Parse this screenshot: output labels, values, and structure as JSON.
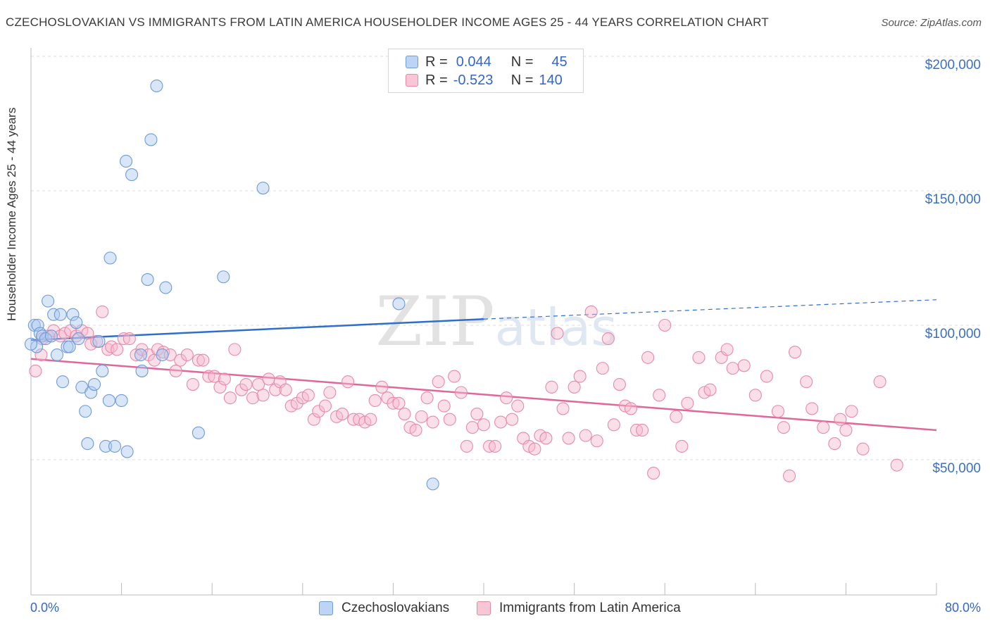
{
  "title": "CZECHOSLOVAKIAN VS IMMIGRANTS FROM LATIN AMERICA HOUSEHOLDER INCOME AGES 25 - 44 YEARS CORRELATION CHART",
  "source": "Source: ZipAtlas.com",
  "watermark": "ZIPatlas",
  "legend": {
    "rows": [
      {
        "r_label": "R =",
        "r_value": "0.044",
        "n_label": "N =",
        "n_value": "45"
      },
      {
        "r_label": "R =",
        "r_value": "-0.523",
        "n_label": "N =",
        "n_value": "140"
      }
    ]
  },
  "bottom_legend": [
    "Czechoslovakians",
    "Immigrants from Latin America"
  ],
  "colors": {
    "blue_fill": "#a9c8f0",
    "blue_stroke": "#6f9bd6",
    "blue_line": "#2f6fcc",
    "pink_fill": "#f6b8cc",
    "pink_stroke": "#e889a8",
    "pink_line": "#e0679a",
    "tick_text": "#3a6fc6",
    "grid": "#dddddd"
  },
  "chart_data": {
    "type": "scatter",
    "title": "CZECHOSLOVAKIAN VS IMMIGRANTS FROM LATIN AMERICA HOUSEHOLDER INCOME AGES 25 - 44 YEARS CORRELATION CHART",
    "xlabel": "",
    "ylabel": "Householder Income Ages 25 - 44 years",
    "xlim": [
      0,
      80
    ],
    "ylim": [
      5000,
      210000
    ],
    "x_tick_labels": [
      "0.0%",
      "80.0%"
    ],
    "y_ticks": [
      50000,
      100000,
      150000,
      200000
    ],
    "y_tick_labels": [
      "$50,000",
      "$100,000",
      "$150,000",
      "$200,000"
    ],
    "grid": true,
    "legend_position": "top-center",
    "series": [
      {
        "name": "Czechoslovakians",
        "points": [
          [
            0.3,
            100000
          ],
          [
            0.5,
            92000
          ],
          [
            0.6,
            100000
          ],
          [
            0.8,
            97000
          ],
          [
            1.0,
            96000
          ],
          [
            1.3,
            95000
          ],
          [
            1.5,
            109000
          ],
          [
            1.8,
            96000
          ],
          [
            2.0,
            104000
          ],
          [
            2.3,
            89000
          ],
          [
            2.6,
            104000
          ],
          [
            2.8,
            79000
          ],
          [
            3.2,
            92000
          ],
          [
            3.4,
            92000
          ],
          [
            3.7,
            104000
          ],
          [
            4.0,
            101000
          ],
          [
            4.2,
            95000
          ],
          [
            4.5,
            77000
          ],
          [
            4.8,
            68000
          ],
          [
            5.0,
            56000
          ],
          [
            5.3,
            75000
          ],
          [
            5.6,
            78000
          ],
          [
            6.0,
            94000
          ],
          [
            6.3,
            83000
          ],
          [
            6.6,
            55000
          ],
          [
            6.9,
            72000
          ],
          [
            7.0,
            125000
          ],
          [
            7.4,
            55000
          ],
          [
            8.0,
            72000
          ],
          [
            8.5,
            53000
          ],
          [
            8.4,
            161000
          ],
          [
            8.9,
            156000
          ],
          [
            9.7,
            89000
          ],
          [
            9.8,
            83000
          ],
          [
            10.3,
            117000
          ],
          [
            10.6,
            169000
          ],
          [
            11.1,
            189000
          ],
          [
            11.6,
            89000
          ],
          [
            11.9,
            114000
          ],
          [
            14.8,
            60000
          ],
          [
            17.0,
            118000
          ],
          [
            20.5,
            151000
          ],
          [
            32.5,
            108000
          ],
          [
            35.5,
            41000
          ],
          [
            0.0,
            93000
          ]
        ]
      },
      {
        "name": "Immigrants from Latin America",
        "points": [
          [
            0.4,
            83000
          ],
          [
            0.9,
            89000
          ],
          [
            1.5,
            96000
          ],
          [
            2.0,
            98000
          ],
          [
            2.6,
            96000
          ],
          [
            3.0,
            97000
          ],
          [
            3.5,
            98000
          ],
          [
            4.0,
            96000
          ],
          [
            4.5,
            98000
          ],
          [
            5.0,
            97000
          ],
          [
            5.3,
            93000
          ],
          [
            5.8,
            94000
          ],
          [
            6.3,
            105000
          ],
          [
            6.8,
            91000
          ],
          [
            7.1,
            92000
          ],
          [
            7.6,
            91000
          ],
          [
            8.2,
            95000
          ],
          [
            8.7,
            95000
          ],
          [
            9.3,
            89000
          ],
          [
            9.8,
            91000
          ],
          [
            10.4,
            89000
          ],
          [
            10.9,
            87000
          ],
          [
            11.2,
            91000
          ],
          [
            11.7,
            90000
          ],
          [
            12.3,
            89000
          ],
          [
            12.8,
            83000
          ],
          [
            13.2,
            87000
          ],
          [
            13.8,
            89000
          ],
          [
            14.3,
            78000
          ],
          [
            14.8,
            87000
          ],
          [
            15.2,
            87000
          ],
          [
            15.7,
            81000
          ],
          [
            16.2,
            81000
          ],
          [
            16.7,
            77000
          ],
          [
            17.1,
            80000
          ],
          [
            17.6,
            73000
          ],
          [
            18.0,
            91000
          ],
          [
            18.6,
            76000
          ],
          [
            19.0,
            78000
          ],
          [
            19.6,
            73000
          ],
          [
            20.1,
            78000
          ],
          [
            20.5,
            74000
          ],
          [
            21.0,
            80000
          ],
          [
            21.6,
            76000
          ],
          [
            22.0,
            79000
          ],
          [
            22.5,
            76000
          ],
          [
            23.0,
            70000
          ],
          [
            23.5,
            71000
          ],
          [
            24.0,
            73000
          ],
          [
            24.5,
            74000
          ],
          [
            25.0,
            65000
          ],
          [
            25.4,
            68000
          ],
          [
            26.0,
            70000
          ],
          [
            26.4,
            75000
          ],
          [
            27.0,
            66000
          ],
          [
            27.5,
            67000
          ],
          [
            28.0,
            79000
          ],
          [
            28.5,
            65000
          ],
          [
            29.0,
            65000
          ],
          [
            29.5,
            64000
          ],
          [
            30.0,
            65000
          ],
          [
            30.4,
            72000
          ],
          [
            31.0,
            77000
          ],
          [
            31.5,
            73000
          ],
          [
            32.0,
            71000
          ],
          [
            32.5,
            71000
          ],
          [
            33.0,
            67000
          ],
          [
            33.5,
            62000
          ],
          [
            34.0,
            61000
          ],
          [
            34.5,
            66000
          ],
          [
            35.0,
            73000
          ],
          [
            35.5,
            64000
          ],
          [
            36.0,
            79000
          ],
          [
            36.5,
            70000
          ],
          [
            37.0,
            65000
          ],
          [
            37.4,
            81000
          ],
          [
            38.0,
            75000
          ],
          [
            38.5,
            55000
          ],
          [
            39.0,
            62000
          ],
          [
            39.4,
            67000
          ],
          [
            40.0,
            63000
          ],
          [
            40.5,
            55000
          ],
          [
            41.0,
            55000
          ],
          [
            41.5,
            64000
          ],
          [
            42.0,
            73000
          ],
          [
            42.5,
            65000
          ],
          [
            43.0,
            70000
          ],
          [
            43.5,
            58000
          ],
          [
            44.0,
            55000
          ],
          [
            44.5,
            54000
          ],
          [
            45.0,
            59000
          ],
          [
            45.5,
            58000
          ],
          [
            46.0,
            77000
          ],
          [
            46.5,
            97000
          ],
          [
            47.0,
            69000
          ],
          [
            47.5,
            58000
          ],
          [
            48.0,
            77000
          ],
          [
            48.5,
            81000
          ],
          [
            49.0,
            59000
          ],
          [
            49.5,
            105000
          ],
          [
            50.0,
            57000
          ],
          [
            50.5,
            84000
          ],
          [
            51.0,
            95000
          ],
          [
            51.5,
            63000
          ],
          [
            52.0,
            78000
          ],
          [
            52.5,
            70000
          ],
          [
            53.0,
            69000
          ],
          [
            53.5,
            61000
          ],
          [
            54.0,
            61000
          ],
          [
            54.5,
            88000
          ],
          [
            55.0,
            45000
          ],
          [
            55.5,
            74000
          ],
          [
            56.0,
            100000
          ],
          [
            57.0,
            66000
          ],
          [
            57.5,
            55000
          ],
          [
            58.0,
            71000
          ],
          [
            59.0,
            88000
          ],
          [
            59.5,
            75000
          ],
          [
            60.0,
            76000
          ],
          [
            61.0,
            88000
          ],
          [
            61.5,
            91000
          ],
          [
            62.0,
            84000
          ],
          [
            63.0,
            85000
          ],
          [
            64.0,
            74000
          ],
          [
            65.0,
            81000
          ],
          [
            66.0,
            68000
          ],
          [
            66.5,
            62000
          ],
          [
            67.0,
            44000
          ],
          [
            67.5,
            90000
          ],
          [
            68.5,
            79000
          ],
          [
            69.0,
            69000
          ],
          [
            70.0,
            62000
          ],
          [
            71.0,
            56000
          ],
          [
            71.5,
            65000
          ],
          [
            72.0,
            61000
          ],
          [
            72.5,
            68000
          ],
          [
            73.5,
            54000
          ],
          [
            75.0,
            79000
          ],
          [
            76.5,
            48000
          ],
          [
            1.0,
            95000
          ]
        ]
      }
    ],
    "trendlines": [
      {
        "series": "Czechoslovakians",
        "solid": [
          [
            0,
            94500
          ],
          [
            40,
            102300
          ]
        ],
        "dashed": [
          [
            40,
            102300
          ],
          [
            80,
            109500
          ]
        ]
      },
      {
        "series": "Immigrants from Latin America",
        "solid": [
          [
            0,
            87500
          ],
          [
            80,
            61000
          ]
        ]
      }
    ]
  }
}
